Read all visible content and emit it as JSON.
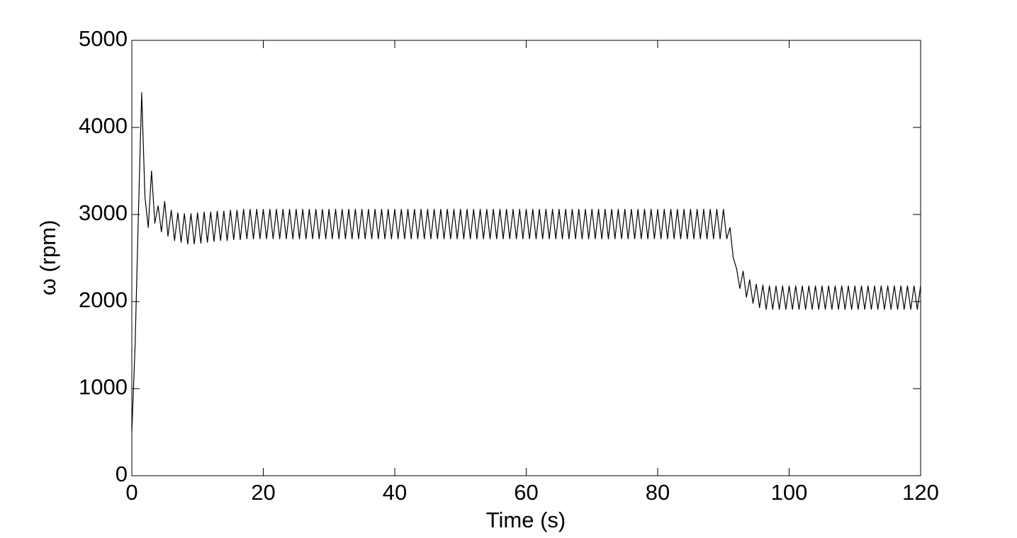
{
  "chart_data": {
    "type": "line",
    "x_label": "Time (s)",
    "y_label": "ω (rpm)",
    "xlim": [
      0,
      120
    ],
    "xticks": [
      0,
      20,
      40,
      60,
      80,
      100,
      120
    ],
    "ylim": [
      0,
      5000
    ],
    "yticks": [
      0,
      1000,
      2000,
      3000,
      4000,
      5000
    ],
    "grid": false,
    "color": "#000000",
    "x": [
      0,
      0.5,
      1,
      1.5,
      2,
      2.5,
      3,
      3.5,
      4,
      4.5,
      5,
      5.5,
      6,
      6.5,
      7,
      7.5,
      8,
      8.5,
      9,
      9.5,
      10,
      10.5,
      11,
      11.5,
      12,
      12.5,
      13,
      13.5,
      14,
      14.5,
      15,
      15.5,
      16,
      16.5,
      17,
      17.5,
      18,
      18.5,
      19,
      19.5,
      20,
      20.5,
      21,
      21.5,
      22,
      22.5,
      23,
      23.5,
      24,
      24.5,
      25,
      25.5,
      26,
      26.5,
      27,
      27.5,
      28,
      28.5,
      29,
      29.5,
      30,
      30.5,
      31,
      31.5,
      32,
      32.5,
      33,
      33.5,
      34,
      34.5,
      35,
      35.5,
      36,
      36.5,
      37,
      37.5,
      38,
      38.5,
      39,
      39.5,
      40,
      40.5,
      41,
      41.5,
      42,
      42.5,
      43,
      43.5,
      44,
      44.5,
      45,
      45.5,
      46,
      46.5,
      47,
      47.5,
      48,
      48.5,
      49,
      49.5,
      50,
      50.5,
      51,
      51.5,
      52,
      52.5,
      53,
      53.5,
      54,
      54.5,
      55,
      55.5,
      56,
      56.5,
      57,
      57.5,
      58,
      58.5,
      59,
      59.5,
      60,
      60.5,
      61,
      61.5,
      62,
      62.5,
      63,
      63.5,
      64,
      64.5,
      65,
      65.5,
      66,
      66.5,
      67,
      67.5,
      68,
      68.5,
      69,
      69.5,
      70,
      70.5,
      71,
      71.5,
      72,
      72.5,
      73,
      73.5,
      74,
      74.5,
      75,
      75.5,
      76,
      76.5,
      77,
      77.5,
      78,
      78.5,
      79,
      79.5,
      80,
      80.5,
      81,
      81.5,
      82,
      82.5,
      83,
      83.5,
      84,
      84.5,
      85,
      85.5,
      86,
      86.5,
      87,
      87.5,
      88,
      88.5,
      89,
      89.5,
      90,
      90.5,
      91,
      91.5,
      92,
      92.5,
      93,
      93.5,
      94,
      94.5,
      95,
      95.5,
      96,
      96.5,
      97,
      97.5,
      98,
      98.5,
      99,
      99.5,
      100,
      100.5,
      101,
      101.5,
      102,
      102.5,
      103,
      103.5,
      104,
      104.5,
      105,
      105.5,
      106,
      106.5,
      107,
      107.5,
      108,
      108.5,
      109,
      109.5,
      110,
      110.5,
      111,
      111.5,
      112,
      112.5,
      113,
      113.5,
      114,
      114.5,
      115,
      115.5,
      116,
      116.5,
      117,
      117.5,
      118,
      118.5,
      119,
      119.5,
      120
    ],
    "values": [
      500,
      1500,
      3000,
      4400,
      3200,
      2850,
      3500,
      2900,
      3100,
      2800,
      3150,
      2750,
      3050,
      2700,
      3020,
      2680,
      3010,
      2660,
      3010,
      2660,
      3020,
      2670,
      3030,
      2680,
      3030,
      2690,
      3040,
      2700,
      3040,
      2700,
      3050,
      2710,
      3050,
      2710,
      3060,
      2720,
      3060,
      2720,
      3060,
      2720,
      3060,
      2720,
      3060,
      2720,
      3060,
      2720,
      3060,
      2720,
      3060,
      2720,
      3060,
      2720,
      3060,
      2720,
      3060,
      2720,
      3060,
      2720,
      3060,
      2720,
      3060,
      2720,
      3060,
      2720,
      3060,
      2720,
      3060,
      2720,
      3060,
      2720,
      3060,
      2720,
      3060,
      2720,
      3060,
      2720,
      3060,
      2720,
      3060,
      2720,
      3060,
      2720,
      3060,
      2720,
      3060,
      2720,
      3060,
      2720,
      3060,
      2720,
      3060,
      2720,
      3060,
      2720,
      3060,
      2720,
      3060,
      2720,
      3060,
      2720,
      3060,
      2720,
      3060,
      2720,
      3060,
      2720,
      3060,
      2720,
      3060,
      2720,
      3060,
      2720,
      3060,
      2720,
      3060,
      2720,
      3060,
      2720,
      3060,
      2720,
      3060,
      2720,
      3060,
      2720,
      3060,
      2720,
      3060,
      2720,
      3060,
      2720,
      3060,
      2720,
      3060,
      2720,
      3060,
      2720,
      3060,
      2720,
      3060,
      2720,
      3060,
      2720,
      3060,
      2720,
      3060,
      2720,
      3060,
      2720,
      3060,
      2720,
      3060,
      2720,
      3060,
      2720,
      3060,
      2720,
      3060,
      2720,
      3060,
      2720,
      3060,
      2720,
      3060,
      2720,
      3060,
      2720,
      3060,
      2720,
      3060,
      2720,
      3060,
      2720,
      3060,
      2720,
      3060,
      2720,
      3060,
      2720,
      3060,
      2720,
      3060,
      2720,
      2850,
      2500,
      2380,
      2150,
      2350,
      2050,
      2250,
      1980,
      2200,
      1930,
      2190,
      1910,
      2180,
      1910,
      2180,
      1910,
      2180,
      1910,
      2180,
      1910,
      2180,
      1910,
      2180,
      1910,
      2180,
      1910,
      2180,
      1910,
      2180,
      1910,
      2180,
      1910,
      2180,
      1910,
      2180,
      1910,
      2180,
      1910,
      2180,
      1910,
      2180,
      1910,
      2180,
      1910,
      2180,
      1910,
      2180,
      1910,
      2180,
      1910,
      2180,
      1910,
      2180,
      1910,
      2180,
      1910,
      2180,
      1910,
      2180
    ]
  }
}
